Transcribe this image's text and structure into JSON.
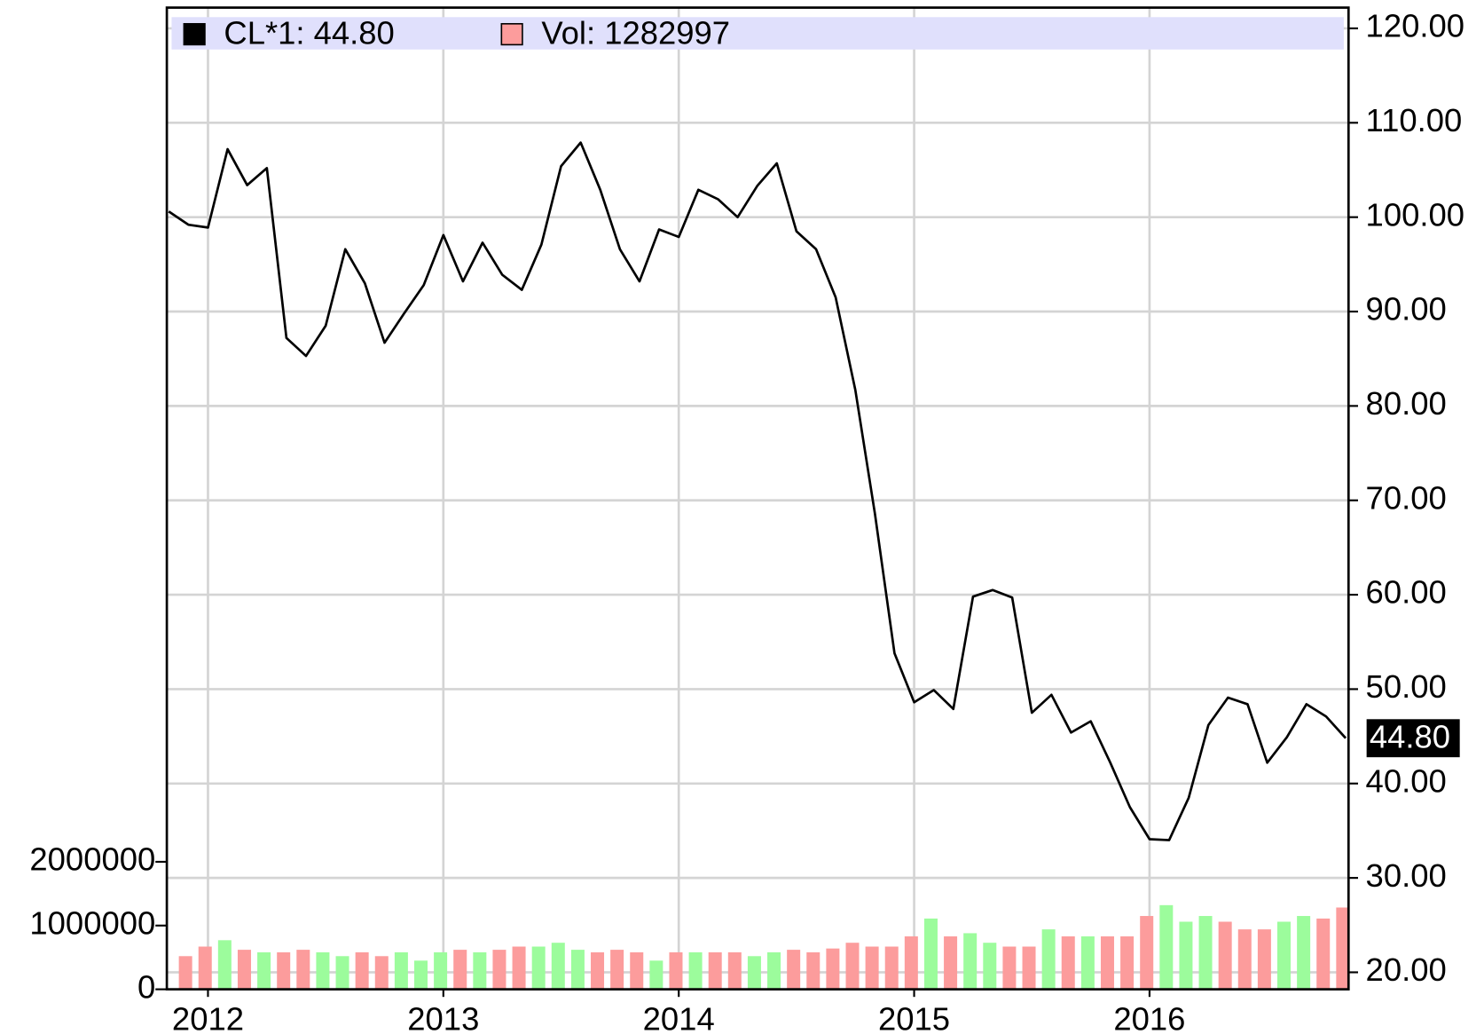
{
  "chart_data": {
    "type": "line",
    "categories": [
      null,
      null,
      "2012",
      null,
      null,
      null,
      null,
      null,
      null,
      null,
      null,
      null,
      null,
      null,
      "2013",
      null,
      null,
      null,
      null,
      null,
      null,
      null,
      null,
      null,
      null,
      null,
      "2014",
      null,
      null,
      null,
      null,
      null,
      null,
      null,
      null,
      null,
      null,
      null,
      "2015",
      null,
      null,
      null,
      null,
      null,
      null,
      null,
      null,
      null,
      null,
      null,
      "2016",
      null,
      null,
      null,
      null,
      null,
      null,
      null,
      null,
      null,
      null
    ],
    "series": [
      {
        "name": "CL*1: 44.80",
        "type": "line",
        "color": "#000000",
        "axis": "y",
        "values": [
          100.6,
          99.2,
          98.9,
          107.2,
          103.4,
          105.2,
          87.2,
          85.3,
          88.5,
          96.6,
          93.0,
          86.7,
          89.8,
          92.8,
          98.1,
          93.2,
          97.3,
          93.9,
          92.3,
          97.1,
          105.4,
          107.9,
          102.9,
          96.6,
          93.2,
          98.7,
          97.9,
          102.9,
          101.9,
          100.0,
          103.3,
          105.7,
          98.5,
          96.6,
          91.5,
          81.7,
          68.6,
          53.8,
          48.6,
          49.9,
          47.9,
          59.8,
          60.5,
          59.7,
          47.5,
          49.4,
          45.4,
          46.6,
          42.2,
          37.5,
          34.1,
          34.0,
          38.5,
          46.2,
          49.1,
          48.4,
          42.2,
          44.9,
          48.4,
          47.1,
          44.8
        ]
      },
      {
        "name": "Vol: 1282997",
        "type": "bar",
        "color": "#fc9c9c",
        "axis": "y2",
        "values": [
          null,
          520000,
          670000,
          770000,
          620000,
          580000,
          580000,
          620000,
          580000,
          520000,
          580000,
          520000,
          580000,
          450000,
          580000,
          620000,
          580000,
          620000,
          670000,
          670000,
          730000,
          620000,
          580000,
          620000,
          580000,
          450000,
          580000,
          580000,
          580000,
          580000,
          520000,
          580000,
          620000,
          580000,
          640000,
          730000,
          670000,
          670000,
          830000,
          1110000,
          830000,
          880000,
          730000,
          670000,
          670000,
          940000,
          830000,
          830000,
          830000,
          830000,
          1150000,
          1320000,
          1060000,
          1150000,
          1060000,
          940000,
          940000,
          1060000,
          1150000,
          1110000,
          1282997
        ],
        "colors": [
          null,
          "#fc9c9c",
          "#fc9c9c",
          "#9cfc9c",
          "#fc9c9c",
          "#9cfc9c",
          "#fc9c9c",
          "#fc9c9c",
          "#9cfc9c",
          "#9cfc9c",
          "#fc9c9c",
          "#fc9c9c",
          "#9cfc9c",
          "#9cfc9c",
          "#9cfc9c",
          "#fc9c9c",
          "#9cfc9c",
          "#fc9c9c",
          "#fc9c9c",
          "#9cfc9c",
          "#9cfc9c",
          "#9cfc9c",
          "#fc9c9c",
          "#fc9c9c",
          "#fc9c9c",
          "#9cfc9c",
          "#fc9c9c",
          "#9cfc9c",
          "#fc9c9c",
          "#fc9c9c",
          "#9cfc9c",
          "#9cfc9c",
          "#fc9c9c",
          "#fc9c9c",
          "#fc9c9c",
          "#fc9c9c",
          "#fc9c9c",
          "#fc9c9c",
          "#fc9c9c",
          "#9cfc9c",
          "#fc9c9c",
          "#9cfc9c",
          "#9cfc9c",
          "#fc9c9c",
          "#fc9c9c",
          "#9cfc9c",
          "#fc9c9c",
          "#9cfc9c",
          "#fc9c9c",
          "#fc9c9c",
          "#fc9c9c",
          "#9cfc9c",
          "#9cfc9c",
          "#9cfc9c",
          "#fc9c9c",
          "#fc9c9c",
          "#fc9c9c",
          "#9cfc9c",
          "#9cfc9c",
          "#fc9c9c",
          "#fc9c9c"
        ]
      }
    ],
    "current_value_label": "44.80",
    "ylim": [
      18.2,
      122.2
    ],
    "yticks": [
      {
        "value": 20,
        "label": "20.00"
      },
      {
        "value": 30,
        "label": "30.00"
      },
      {
        "value": 40,
        "label": "40.00"
      },
      {
        "value": 50,
        "label": "50.00"
      },
      {
        "value": 60,
        "label": "60.00"
      },
      {
        "value": 70,
        "label": "70.00"
      },
      {
        "value": 80,
        "label": "80.00"
      },
      {
        "value": 90,
        "label": "90.00"
      },
      {
        "value": 100,
        "label": "100.00"
      },
      {
        "value": 110,
        "label": "110.00"
      },
      {
        "value": 120,
        "label": "120.00"
      }
    ],
    "y2lim": [
      0,
      15400000
    ],
    "y2ticks": [
      0,
      1000000,
      2000000
    ],
    "grid": true,
    "legend": "top-left"
  }
}
